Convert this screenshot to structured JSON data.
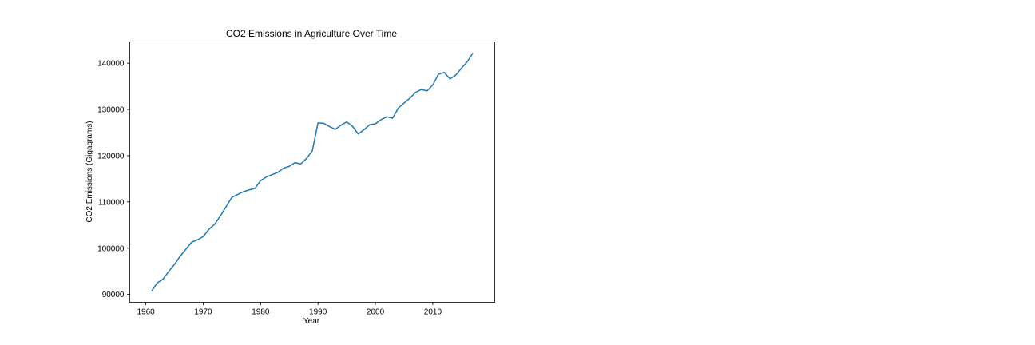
{
  "chart_data": {
    "type": "line",
    "title": "CO2 Emissions in Agriculture Over Time",
    "xlabel": "Year",
    "ylabel": "CO2 Emissions (Gigagrams)",
    "xlim": [
      1957.2,
      2020.8
    ],
    "ylim": [
      88300,
      144600
    ],
    "x_ticks": [
      1960,
      1970,
      1980,
      1990,
      2000,
      2010
    ],
    "x_tick_labels": [
      "1960",
      "1970",
      "1980",
      "1990",
      "2000",
      "2010"
    ],
    "y_ticks": [
      90000,
      100000,
      110000,
      120000,
      130000,
      140000
    ],
    "y_tick_labels": [
      "90000",
      "100000",
      "110000",
      "120000",
      "130000",
      "140000"
    ],
    "grid": false,
    "series": [
      {
        "color": "#1f77b4",
        "x": [
          1961,
          1962,
          1963,
          1964,
          1965,
          1966,
          1967,
          1968,
          1969,
          1970,
          1971,
          1972,
          1973,
          1974,
          1975,
          1976,
          1977,
          1978,
          1979,
          1980,
          1981,
          1982,
          1983,
          1984,
          1985,
          1986,
          1987,
          1988,
          1989,
          1990,
          1991,
          1992,
          1993,
          1994,
          1995,
          1996,
          1997,
          1998,
          1999,
          2000,
          2001,
          2002,
          2003,
          2004,
          2005,
          2006,
          2007,
          2008,
          2009,
          2010,
          2011,
          2012,
          2013,
          2014,
          2015,
          2016,
          2017
        ],
        "y": [
          90700,
          92500,
          93300,
          95000,
          96500,
          98300,
          99800,
          101300,
          101800,
          102500,
          104100,
          105200,
          107000,
          109000,
          111000,
          111600,
          112200,
          112600,
          112900,
          114600,
          115400,
          115900,
          116400,
          117300,
          117700,
          118500,
          118200,
          119400,
          121000,
          127100,
          127000,
          126300,
          125700,
          126600,
          127300,
          126400,
          124700,
          125600,
          126700,
          126900,
          127800,
          128400,
          128100,
          130300,
          131400,
          132400,
          133700,
          134300,
          134000,
          135300,
          137600,
          138000,
          136600,
          137400,
          138900,
          140300,
          142200
        ]
      }
    ]
  }
}
